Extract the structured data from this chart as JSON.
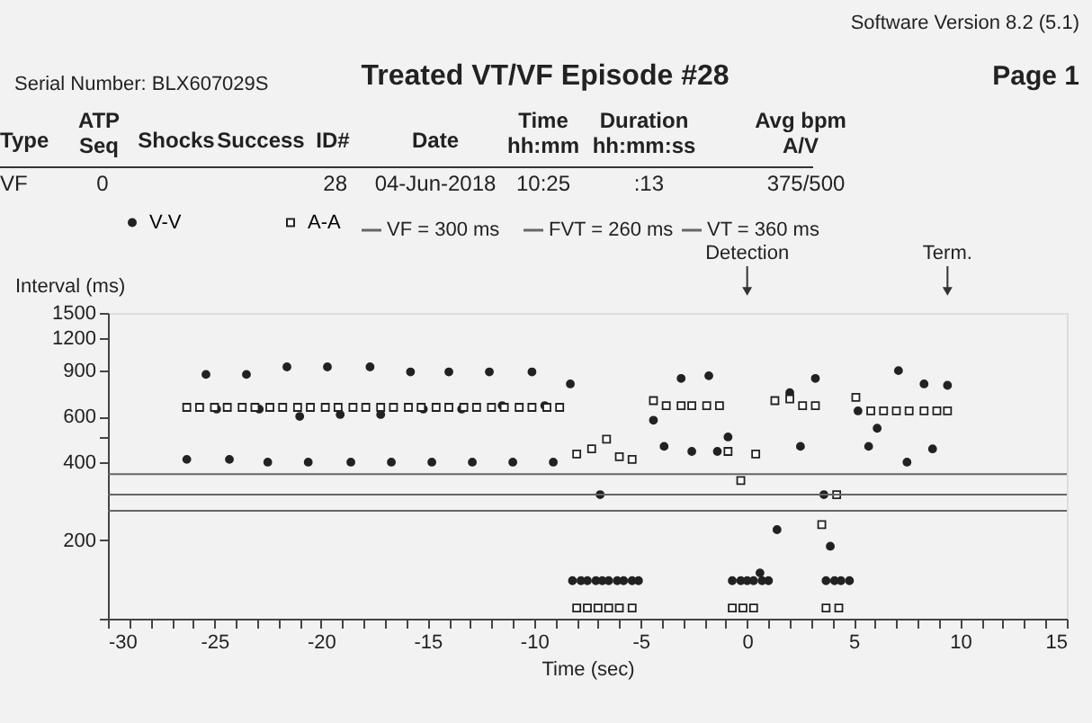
{
  "chart_data": {
    "type": "scatter",
    "title": "Treated VT/VF Episode #28",
    "xlabel": "Time (sec)",
    "ylabel": "Interval (ms)",
    "annotations": [
      "Serial Number: BLX607029S",
      "Software Version 8.2 (5.1)",
      "Page 1",
      "Type",
      "ATP\nSeq",
      "Shocks",
      "Success",
      "ID#",
      "Date",
      "Time\nhh:mm",
      "Duration\nhh:mm:ss",
      "Avg bpm\nA/V",
      "VF",
      "0",
      "28",
      "04-Jun-2018",
      "10:25",
      ":13",
      "375/500"
    ],
    "xlim": [
      -30,
      15
    ],
    "xticks": [
      -30,
      {
        "value": -29,
        "label": null
      },
      {
        "value": -28,
        "label": null
      },
      {
        "value": -27,
        "label": null
      },
      {
        "value": -26,
        "label": null
      },
      -25,
      {
        "value": -24,
        "label": null
      },
      {
        "value": -23,
        "label": null
      },
      {
        "value": -22,
        "label": null
      },
      {
        "value": -21,
        "label": null
      },
      -20,
      {
        "value": -19,
        "label": null
      },
      {
        "value": -18,
        "label": null
      },
      {
        "value": -17,
        "label": null
      },
      {
        "value": -16,
        "label": null
      },
      -15,
      {
        "value": -14,
        "label": null
      },
      {
        "value": -13,
        "label": null
      },
      {
        "value": -12,
        "label": null
      },
      {
        "value": -11,
        "label": null
      },
      -10,
      {
        "value": -9,
        "label": null
      },
      {
        "value": -8,
        "label": null
      },
      {
        "value": -7,
        "label": null
      },
      {
        "value": -6,
        "label": null
      },
      -5,
      {
        "value": -4,
        "label": null
      },
      {
        "value": -3,
        "label": null
      },
      {
        "value": -2,
        "label": null
      },
      {
        "value": -1,
        "label": null
      },
      0,
      {
        "value": 1,
        "label": null
      },
      {
        "value": 2,
        "label": null
      },
      {
        "value": 3,
        "label": null
      },
      {
        "value": 4,
        "label": null
      },
      5,
      {
        "value": 6,
        "label": null
      },
      {
        "value": 7,
        "label": null
      },
      {
        "value": 8,
        "label": null
      },
      {
        "value": 9,
        "label": null
      },
      10,
      {
        "value": 11,
        "label": null
      },
      {
        "value": 12,
        "label": null
      },
      {
        "value": 13,
        "label": null
      },
      {
        "value": 14,
        "label": null
      },
      15
    ],
    "ylim": [
      100,
      1500
    ],
    "yticks": [
      1500,
      1200,
      900,
      600,
      {
        "value": 500,
        "label": null
      },
      400,
      200,
      {
        "value": 100,
        "label": null
      }
    ],
    "grid": false,
    "legend": "top",
    "log": "y",
    "series": [
      {
        "name": "V-V",
        "color": "#222222",
        "marker": "circle",
        "x": [
          -26.3,
          -25.4,
          -24.9,
          -24.3,
          -23.5,
          -22.9,
          -22.5,
          -21.6,
          -21.0,
          -20.6,
          -19.7,
          -19.1,
          -18.6,
          -17.7,
          -17.2,
          -16.7,
          -15.8,
          -15.2,
          -14.8,
          -14.0,
          -13.4,
          -12.9,
          -12.1,
          -11.5,
          -11.0,
          -10.1,
          -9.5,
          -9.1,
          -8.3,
          -8.2,
          -7.8,
          -7.5,
          -7.1,
          -6.9,
          -6.8,
          -6.5,
          -6.1,
          -5.8,
          -5.4,
          -5.1,
          -4.4,
          -3.9,
          -3.1,
          -2.6,
          -1.8,
          -1.4,
          -0.9,
          -0.7,
          -0.3,
          0,
          0.3,
          0.6,
          0.7,
          1.0,
          1.4,
          2.0,
          2.5,
          3.2,
          3.6,
          3.7,
          3.9,
          4.1,
          4.4,
          4.8,
          5.2,
          5.7,
          6.1,
          7.1,
          7.5,
          8.3,
          8.7,
          9.4
        ],
        "values": [
          410,
          870,
          640,
          410,
          870,
          640,
          400,
          930,
          600,
          400,
          930,
          610,
          400,
          930,
          610,
          400,
          890,
          640,
          400,
          890,
          640,
          400,
          890,
          660,
          400,
          890,
          660,
          400,
          800,
          140,
          140,
          140,
          140,
          300,
          140,
          140,
          140,
          140,
          140,
          140,
          580,
          460,
          840,
          440,
          860,
          440,
          500,
          140,
          140,
          140,
          140,
          150,
          140,
          140,
          220,
          740,
          460,
          840,
          300,
          140,
          190,
          140,
          140,
          140,
          630,
          460,
          540,
          900,
          400,
          800,
          450,
          790
        ]
      },
      {
        "name": "A-A",
        "color": "#222222",
        "marker": "square",
        "x": [
          -26.3,
          -25.7,
          -25.0,
          -24.4,
          -23.7,
          -23.1,
          -22.4,
          -21.8,
          -21.1,
          -20.5,
          -19.8,
          -19.2,
          -18.5,
          -17.9,
          -17.2,
          -16.6,
          -15.9,
          -15.3,
          -14.6,
          -14.0,
          -13.3,
          -12.7,
          -12.0,
          -11.4,
          -10.7,
          -10.1,
          -9.4,
          -8.8,
          -8.0,
          -8.0,
          -7.5,
          -7.3,
          -7.0,
          -6.6,
          -6.5,
          -6.0,
          -6.0,
          -5.4,
          -5.4,
          -4.4,
          -3.8,
          -3.1,
          -2.6,
          -1.9,
          -1.3,
          -0.9,
          -0.7,
          -0.3,
          -0.2,
          0.3,
          0.4,
          1.3,
          2.0,
          2.6,
          3.2,
          3.5,
          3.7,
          4.2,
          4.3,
          5.1,
          5.8,
          6.4,
          7.0,
          7.6,
          8.3,
          8.9,
          9.4
        ],
        "values": [
          650,
          650,
          650,
          650,
          650,
          650,
          650,
          650,
          650,
          650,
          650,
          650,
          650,
          650,
          650,
          650,
          650,
          650,
          650,
          650,
          650,
          650,
          650,
          650,
          650,
          650,
          650,
          650,
          430,
          110,
          110,
          450,
          110,
          490,
          110,
          420,
          110,
          410,
          110,
          690,
          660,
          660,
          660,
          660,
          660,
          440,
          110,
          340,
          110,
          110,
          430,
          690,
          700,
          660,
          660,
          230,
          110,
          300,
          110,
          710,
          630,
          630,
          630,
          630,
          630,
          630,
          630
        ]
      }
    ],
    "ref_lines": [
      {
        "axis": "y",
        "value": 300,
        "label": "VF = 300 ms",
        "color": "#666666"
      },
      {
        "axis": "y",
        "value": 260,
        "label": "FVT = 260 ms",
        "color": "#666666"
      },
      {
        "axis": "y",
        "value": 360,
        "label": "VT = 360 ms",
        "color": "#666666"
      },
      {
        "axis": "x",
        "value": 0,
        "label": "Detection",
        "color": "#333333"
      },
      {
        "axis": "x",
        "value": 9.4,
        "label": "Term.",
        "color": "#333333"
      }
    ]
  }
}
